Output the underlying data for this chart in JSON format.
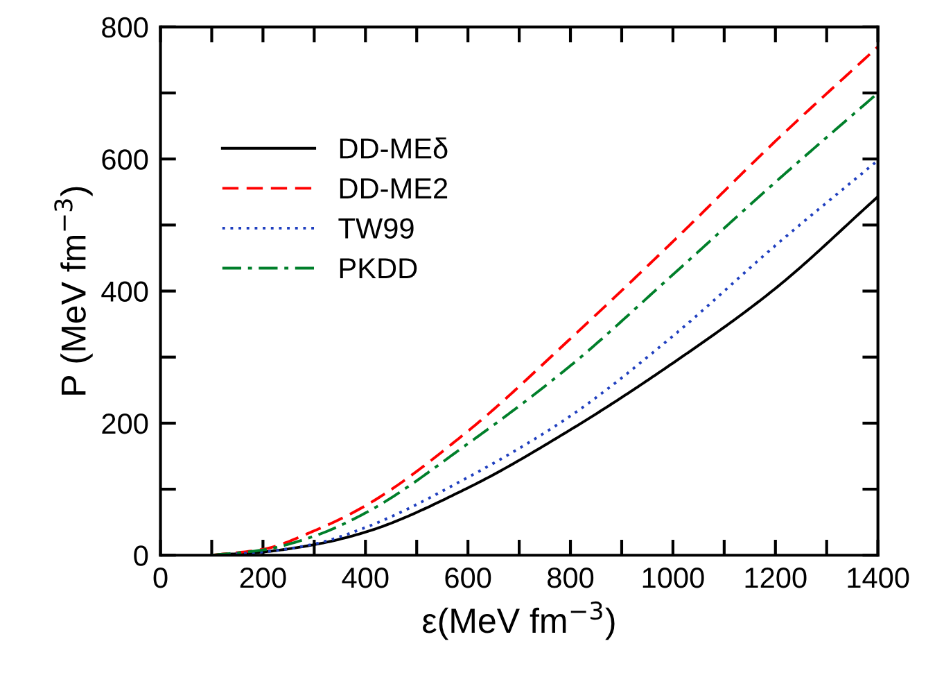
{
  "chart_data": {
    "type": "line",
    "xlabel": "ε(MeV fm$^{−3}$)",
    "ylabel": "P (MeV fm$^{−3}$)",
    "xlim": [
      0,
      1400
    ],
    "ylim": [
      0,
      800
    ],
    "xticks": [
      0,
      {
        "value": 100,
        "label": null
      },
      200,
      {
        "value": 300,
        "label": null
      },
      400,
      {
        "value": 500,
        "label": null
      },
      600,
      {
        "value": 700,
        "label": null
      },
      800,
      {
        "value": 900,
        "label": null
      },
      1000,
      {
        "value": 1100,
        "label": null
      },
      1200,
      {
        "value": 1300,
        "label": null
      },
      1400
    ],
    "yticks": [
      0,
      {
        "value": 100,
        "label": null
      },
      200,
      {
        "value": 300,
        "label": null
      },
      400,
      {
        "value": 500,
        "label": null
      },
      600,
      {
        "value": 700,
        "label": null
      },
      800
    ],
    "x": [
      100,
      200,
      300,
      400,
      600,
      800,
      1000,
      1200,
      1400
    ],
    "series": [
      {
        "name": "DD-MEδ",
        "color": "#000000",
        "line_style": "solid",
        "values": [
          0,
          5,
          16,
          35,
          102,
          190,
          291,
          404,
          543
        ]
      },
      {
        "name": "DD-ME2",
        "color": "#ff0000",
        "line_style": "dashed",
        "values": [
          0,
          9,
          37,
          75,
          188,
          328,
          475,
          627,
          770
        ]
      },
      {
        "name": "TW99",
        "color": "#1f3fbf",
        "line_style": "dotted",
        "values": [
          0,
          5,
          17,
          42,
          118,
          211,
          332,
          469,
          598
        ]
      },
      {
        "name": "PKDD",
        "color": "#007f2a",
        "line_style": "dashdot",
        "values": [
          0,
          8,
          29,
          64,
          169,
          287,
          425,
          565,
          700
        ]
      }
    ],
    "legend": "top left",
    "grid": false,
    "marker": "none"
  }
}
